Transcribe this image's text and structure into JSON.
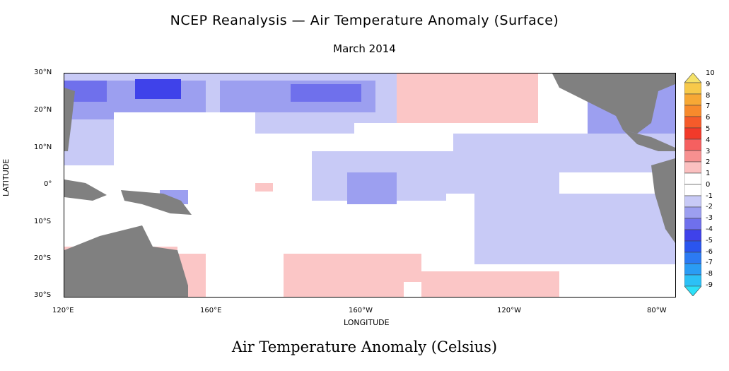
{
  "title": "NCEP Reanalysis — Air Temperature Anomaly (Surface)",
  "subtitle": "March 2014",
  "caption": "Air Temperature Anomaly (Celsius)",
  "xlabel": "LONGITUDE",
  "ylabel": "LATITUDE",
  "lat_ticks": [
    "30°N",
    "20°N",
    "10°N",
    "0°",
    "10°S",
    "20°S",
    "30°S"
  ],
  "lon_ticks": [
    "120°E",
    "160°E",
    "160°W",
    "120°W",
    "80°W"
  ],
  "colorbar": {
    "labels": [
      "10",
      "9",
      "8",
      "7",
      "6",
      "5",
      "4",
      "3",
      "2",
      "1",
      "0",
      "-1",
      "-2",
      "-3",
      "-4",
      "-5",
      "-6",
      "-7",
      "-8",
      "-9"
    ],
    "colors": [
      "#f5e26a",
      "#f7c94a",
      "#f7a835",
      "#f78a2c",
      "#f55b2a",
      "#f23a2a",
      "#f56060",
      "#f79090",
      "#fbc0c0",
      "#ffffff",
      "#ffffff",
      "#c8caf6",
      "#9c9ff0",
      "#6f70ec",
      "#3f42ea",
      "#2a55ee",
      "#2c7af2",
      "#2a9cf4",
      "#2cc0f6",
      "#2ce0f8"
    ]
  },
  "colors": {
    "land": "#808080",
    "warm_light": "#fbc6c6",
    "warm_mid": "#f79a9a",
    "cool_light": "#c8caf6",
    "cool_mid": "#9c9ff0",
    "cool_strong": "#6f70ec",
    "cool_deep": "#3f42ea"
  }
}
